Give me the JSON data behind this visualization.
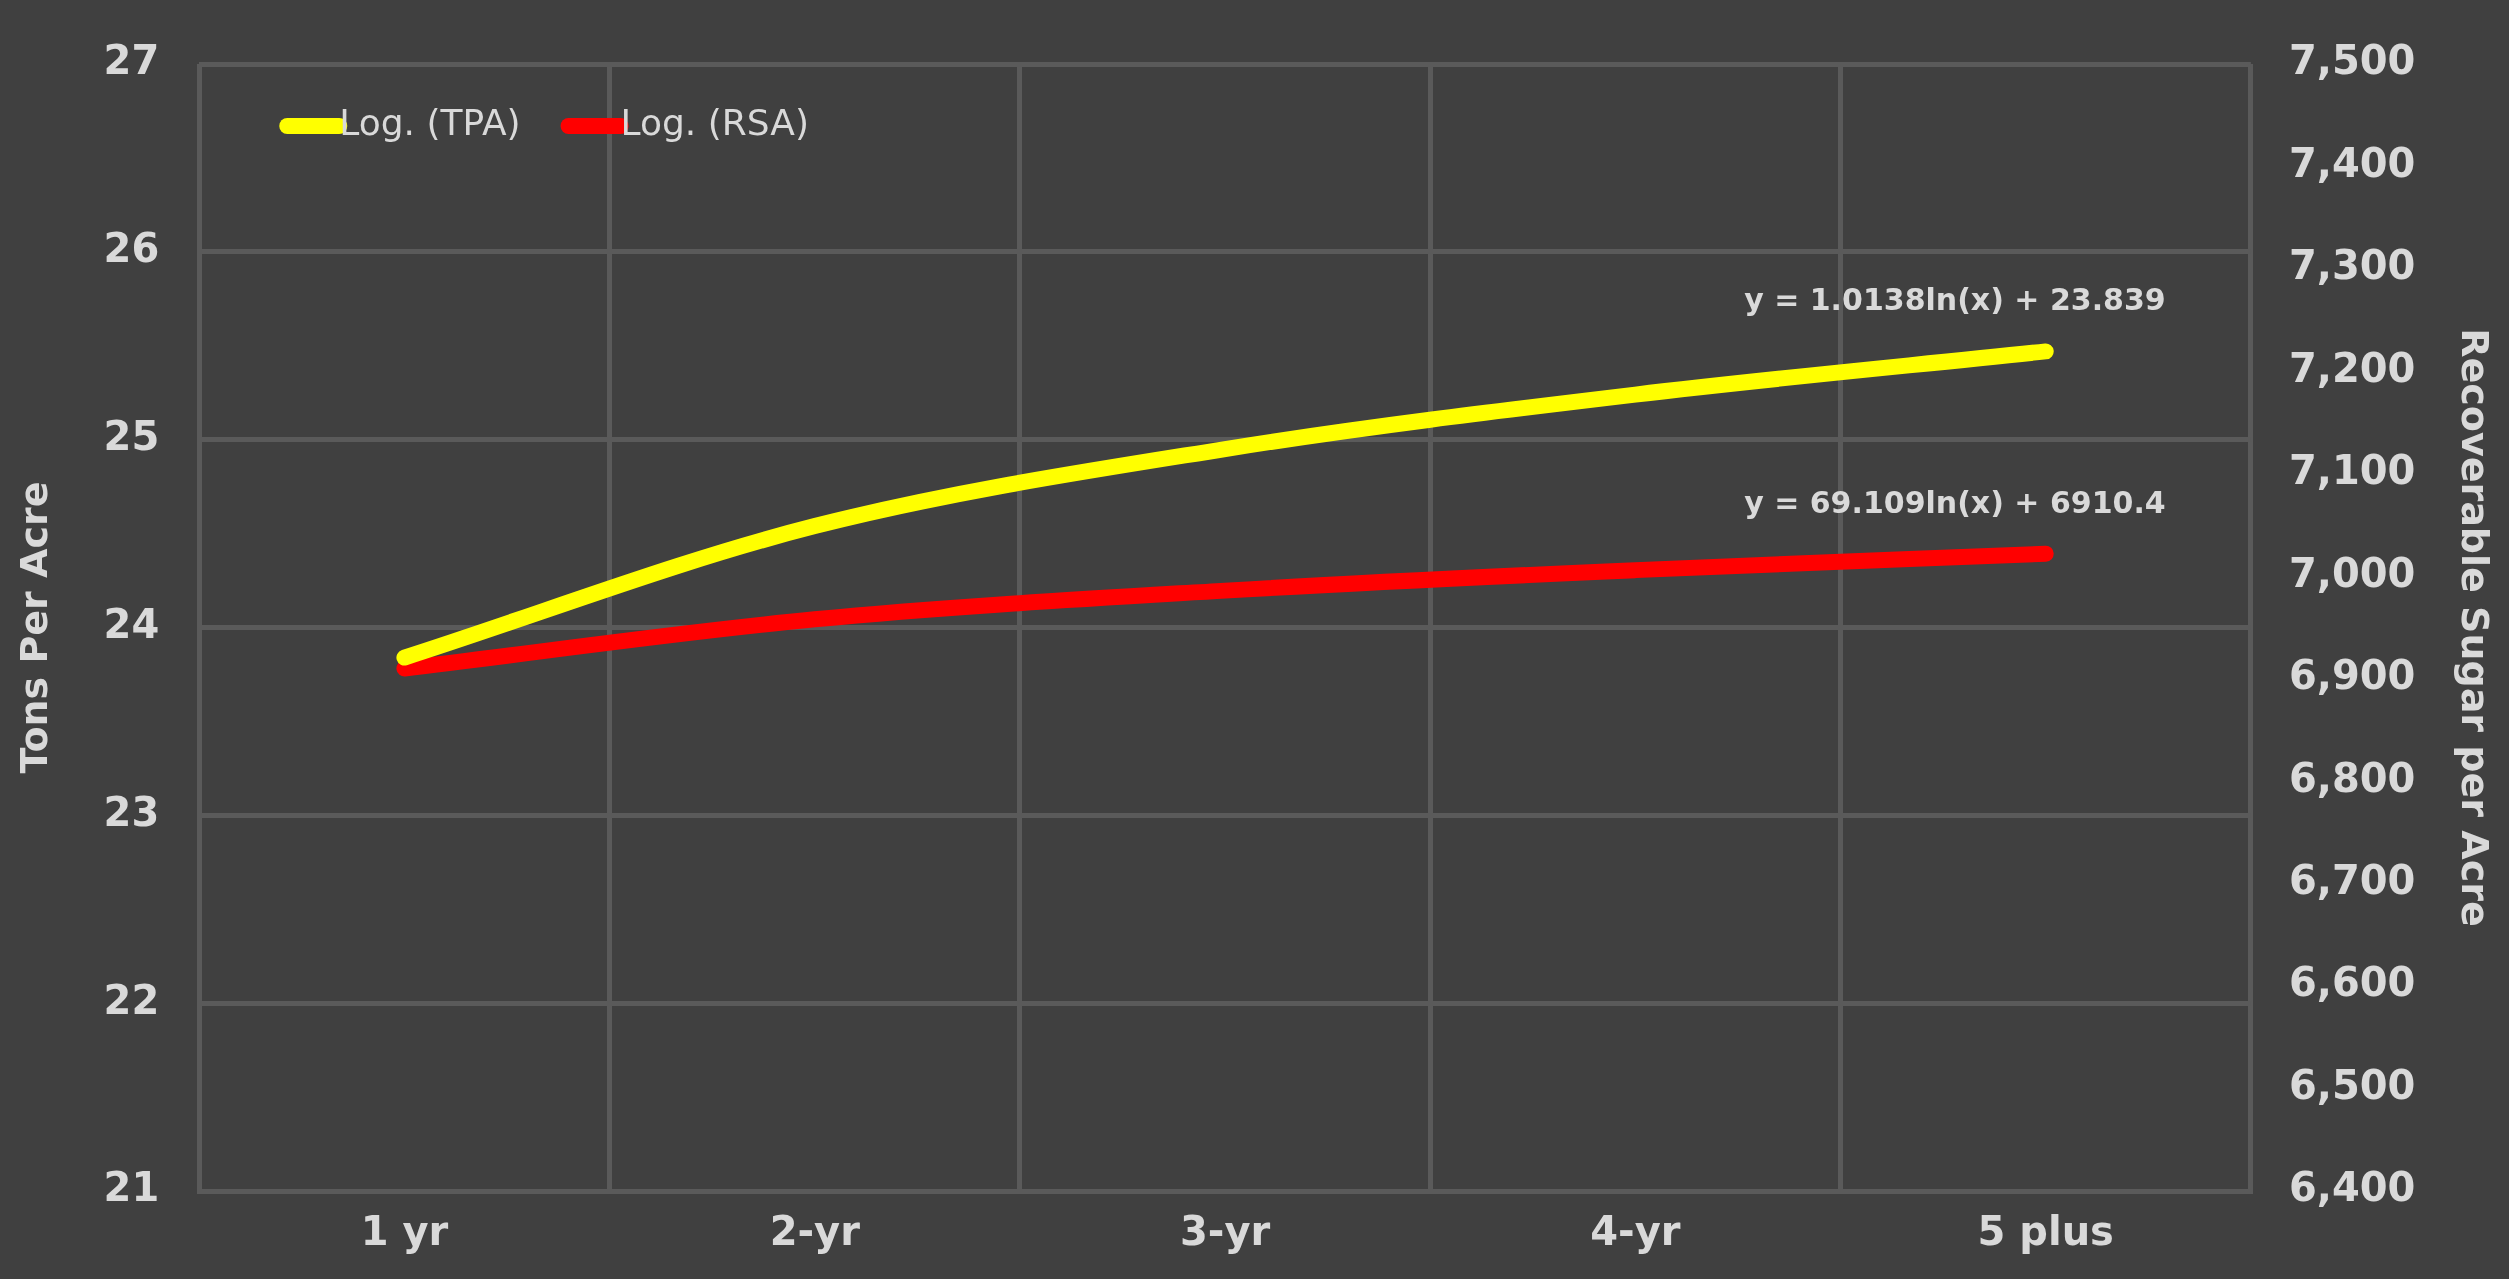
{
  "chart_data": {
    "type": "line",
    "xlabel": null,
    "ylabel": "Tons Per Acre",
    "y2label": "Recoverable Sugar per Acre",
    "categories": [
      "1 yr",
      "2-yr",
      "3-yr",
      "4-yr",
      "5 plus"
    ],
    "series": [
      {
        "name": "Log. (TPA)",
        "color": "#ffff00",
        "values": [
          23.84,
          24.54,
          24.95,
          25.24,
          25.47
        ]
      },
      {
        "name": "Log. (RSA)",
        "color": "#ff0000",
        "axis": "y2",
        "values": [
          6910,
          6958,
          6986,
          7006,
          7022
        ]
      }
    ],
    "ylim": [
      21,
      27
    ],
    "yticks": [
      21,
      22,
      23,
      24,
      25,
      26,
      27
    ],
    "y2lim": [
      6400,
      7500
    ],
    "y2ticks": [
      {
        "value": 6400,
        "label": "6,400"
      },
      {
        "value": 6500,
        "label": "6,500"
      },
      {
        "value": 6600,
        "label": "6,600"
      },
      {
        "value": 6700,
        "label": "6,700"
      },
      {
        "value": 6800,
        "label": "6,800"
      },
      {
        "value": 6900,
        "label": "6,900"
      },
      {
        "value": 7000,
        "label": "7,000"
      },
      {
        "value": 7100,
        "label": "7,100"
      },
      {
        "value": 7200,
        "label": "7,200"
      },
      {
        "value": 7300,
        "label": "7,300"
      },
      {
        "value": 7400,
        "label": "7,400"
      },
      {
        "value": 7500,
        "label": "7,500"
      }
    ],
    "annotations": [
      "y = 1.0138ln(x) + 23.839",
      "y = 69.109ln(x) + 6910.4"
    ],
    "grid": true,
    "legend": "top left",
    "marker": "none",
    "line_style": "solid"
  }
}
